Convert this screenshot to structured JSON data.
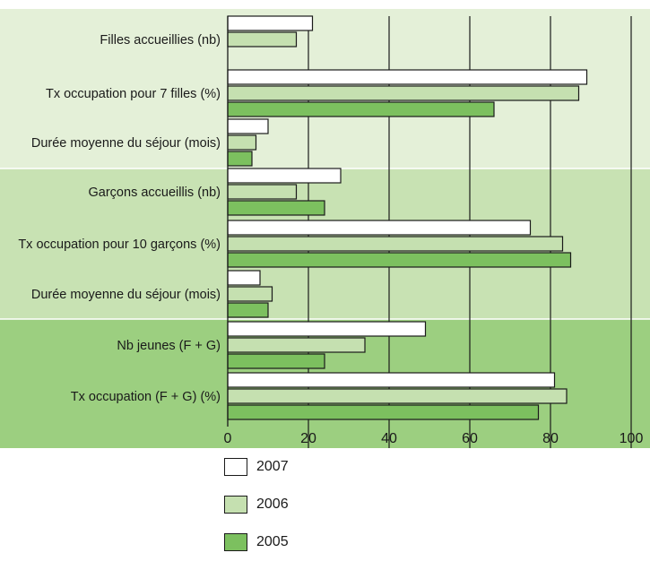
{
  "chart_data": {
    "type": "bar",
    "orientation": "horizontal",
    "groups": [
      {
        "band": 0,
        "categories": [
          "Filles accueillies (nb)",
          "Tx occupation pour 7 filles (%)",
          "Durée moyenne du séjour (mois)"
        ]
      },
      {
        "band": 1,
        "categories": [
          "Garçons accueillis (nb)",
          "Tx occupation pour 10 garçons (%)",
          "Durée moyenne du séjour (mois)"
        ]
      },
      {
        "band": 2,
        "categories": [
          "Nb jeunes (F + G)",
          "Tx occupation (F + G) (%)"
        ]
      }
    ],
    "categories": [
      "Filles accueillies (nb)",
      "Tx occupation pour 7 filles (%)",
      "Durée moyenne du séjour (mois)",
      "Garçons accueillis (nb)",
      "Tx occupation pour 10 garçons (%)",
      "Durée moyenne du séjour (mois)",
      "Nb jeunes (F + G)",
      "Tx occupation (F + G) (%)"
    ],
    "series": [
      {
        "name": "2007",
        "color": "#ffffff",
        "values": [
          21,
          89,
          10,
          28,
          75,
          8,
          49,
          81
        ]
      },
      {
        "name": "2006",
        "color": "#c5e0b0",
        "values": [
          17,
          87,
          7,
          17,
          83,
          11,
          34,
          84
        ]
      },
      {
        "name": "2005",
        "color": "#7cc05f",
        "values": [
          null,
          66,
          6,
          24,
          85,
          10,
          24,
          77
        ]
      }
    ],
    "xlim": [
      0,
      100
    ],
    "xticks": [
      0,
      20,
      40,
      60,
      80,
      100
    ],
    "grid": true,
    "legend_position": "bottom",
    "band_colors": [
      "#e4f0d8",
      "#c8e2b3",
      "#9ccf80"
    ]
  }
}
